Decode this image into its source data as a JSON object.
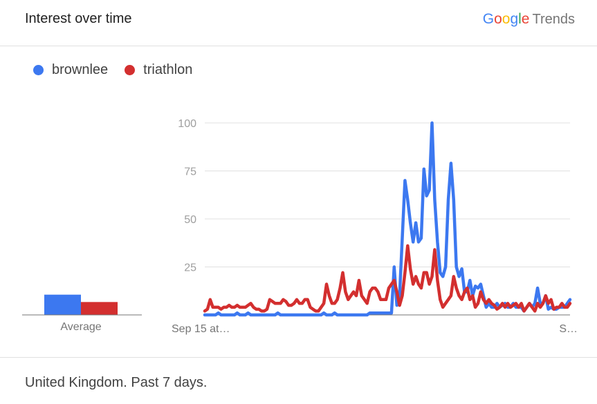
{
  "header": {
    "title": "Interest over time",
    "brand_google": "Google",
    "brand_trends": "Trends"
  },
  "legend": [
    {
      "label": "brownlee",
      "color": "#3c78f0"
    },
    {
      "label": "triathlon",
      "color": "#d32f2f"
    }
  ],
  "footer": {
    "text": "United Kingdom. Past 7 days."
  },
  "chart_data": {
    "type": "line",
    "ylim": [
      0,
      100
    ],
    "yticks": [
      25,
      50,
      75,
      100
    ],
    "xtick_labels": [
      "Sep 15 at…",
      "S…"
    ],
    "average": {
      "label": "Average",
      "values": {
        "brownlee": 11,
        "triathlon": 7
      }
    },
    "series": [
      {
        "name": "brownlee",
        "color": "#3c78f0",
        "values": [
          0,
          0,
          0,
          0,
          0,
          1,
          0,
          0,
          0,
          0,
          0,
          0,
          1,
          0,
          0,
          0,
          1,
          0,
          0,
          0,
          0,
          0,
          0,
          0,
          0,
          0,
          0,
          1,
          0,
          0,
          0,
          0,
          0,
          0,
          0,
          0,
          0,
          0,
          0,
          0,
          0,
          0,
          0,
          0,
          1,
          0,
          0,
          0,
          1,
          0,
          0,
          0,
          0,
          0,
          0,
          0,
          0,
          0,
          0,
          0,
          0,
          1,
          1,
          1,
          1,
          1,
          1,
          1,
          1,
          1,
          25,
          5,
          10,
          40,
          70,
          60,
          48,
          38,
          48,
          38,
          40,
          76,
          62,
          65,
          100,
          60,
          38,
          22,
          20,
          25,
          60,
          79,
          60,
          25,
          20,
          24,
          12,
          12,
          18,
          10,
          15,
          14,
          16,
          10,
          4,
          6,
          4,
          4,
          6,
          4,
          5,
          6,
          4,
          4,
          6,
          4,
          4,
          4,
          2,
          4,
          6,
          4,
          6,
          14,
          6,
          6,
          10,
          3,
          4,
          3,
          3,
          4,
          4,
          4,
          6,
          8
        ]
      },
      {
        "name": "triathlon",
        "color": "#d32f2f",
        "values": [
          2,
          3,
          8,
          4,
          4,
          4,
          3,
          4,
          4,
          5,
          4,
          4,
          5,
          4,
          4,
          4,
          5,
          6,
          4,
          3,
          3,
          2,
          2,
          3,
          8,
          7,
          6,
          6,
          6,
          8,
          7,
          5,
          5,
          6,
          8,
          6,
          6,
          8,
          8,
          4,
          3,
          2,
          2,
          4,
          6,
          16,
          10,
          6,
          6,
          8,
          14,
          22,
          12,
          8,
          10,
          12,
          10,
          18,
          10,
          8,
          6,
          12,
          14,
          14,
          12,
          8,
          8,
          8,
          14,
          16,
          18,
          12,
          5,
          10,
          22,
          36,
          24,
          16,
          20,
          16,
          14,
          22,
          22,
          16,
          20,
          34,
          18,
          8,
          4,
          6,
          8,
          10,
          20,
          14,
          10,
          8,
          12,
          14,
          8,
          10,
          4,
          6,
          12,
          8,
          6,
          8,
          6,
          5,
          3,
          4,
          6,
          4,
          6,
          4,
          5,
          6,
          4,
          6,
          2,
          4,
          6,
          4,
          2,
          6,
          4,
          6,
          10,
          6,
          8,
          3,
          4,
          4,
          6,
          4,
          4,
          6
        ]
      }
    ]
  }
}
